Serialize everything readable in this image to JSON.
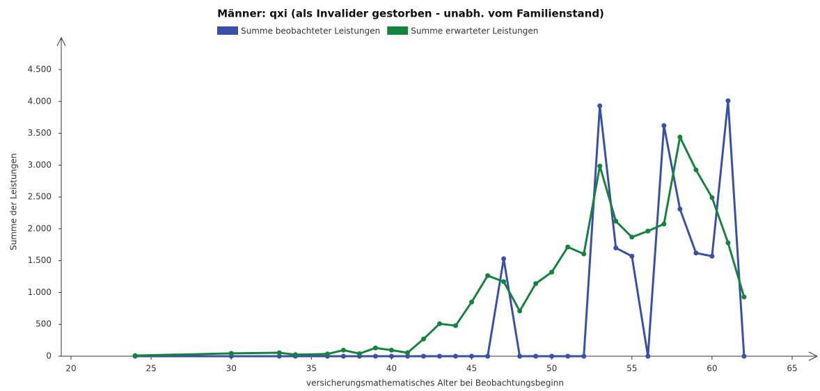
{
  "chart_data": {
    "type": "line",
    "title": "Männer: qxi (als Invalider gestorben - unabh. vom Familienstand)",
    "x_label": "versicherungsmathematisches Alter bei Beobachtungsbeginn",
    "y_label": "Summe der Leistungen",
    "x": [
      24,
      30,
      33,
      34,
      36,
      37,
      38,
      39,
      40,
      41,
      42,
      43,
      44,
      45,
      46,
      47,
      48,
      49,
      50,
      51,
      52,
      53,
      54,
      55,
      56,
      57,
      58,
      59,
      60,
      61,
      62
    ],
    "series": [
      {
        "name": "Summe beobachteter Leistungen",
        "color": "#3a50a8",
        "values": [
          0,
          0,
          0,
          0,
          0,
          0,
          0,
          0,
          0,
          0,
          0,
          0,
          0,
          0,
          0,
          1530,
          0,
          0,
          0,
          0,
          0,
          3930,
          1700,
          1570,
          0,
          3620,
          2310,
          1620,
          1570,
          4010,
          0
        ]
      },
      {
        "name": "Summe erwarteter Leistungen",
        "color": "#17823e",
        "values": [
          10,
          45,
          55,
          25,
          35,
          95,
          40,
          130,
          95,
          55,
          270,
          510,
          480,
          850,
          1265,
          1170,
          710,
          1140,
          1320,
          1715,
          1605,
          2985,
          2120,
          1870,
          1965,
          2075,
          3440,
          2925,
          2490,
          1780,
          930
        ]
      }
    ],
    "xlim": [
      20,
      65
    ],
    "xticks": [
      20,
      25,
      30,
      35,
      40,
      45,
      50,
      55,
      60,
      65
    ],
    "ylim": [
      0,
      4500
    ],
    "yticks": [
      0,
      500,
      {
        "value": 1000,
        "label": "1.000"
      },
      {
        "value": 1500,
        "label": "1.500"
      },
      {
        "value": 2000,
        "label": "2.000"
      },
      {
        "value": 2500,
        "label": "2.500"
      },
      {
        "value": 3000,
        "label": "3.000"
      },
      {
        "value": 3500,
        "label": "3.500"
      },
      {
        "value": 4000,
        "label": "4.000"
      },
      {
        "value": 4500,
        "label": "4.500"
      }
    ],
    "grid": false,
    "legend": "top"
  }
}
